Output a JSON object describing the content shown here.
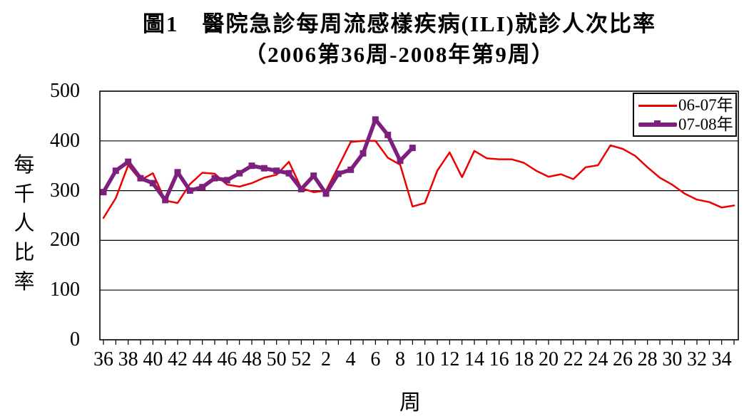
{
  "title": {
    "line1": "圖1　醫院急診每周流感樣疾病(ILI)就診人次比率",
    "line2": "（2006第36周-2008年第9周）"
  },
  "axes": {
    "y_title_vertical": "每千人比率",
    "x_title": "周",
    "y_ticks": [
      "0",
      "100",
      "200",
      "300",
      "400",
      "500"
    ],
    "x_tick_labels": [
      "36",
      "38",
      "40",
      "42",
      "44",
      "46",
      "48",
      "50",
      "52",
      "2",
      "4",
      "6",
      "8",
      "10",
      "12",
      "14",
      "16",
      "18",
      "20",
      "22",
      "24",
      "26",
      "28",
      "30",
      "32",
      "34"
    ]
  },
  "legend": {
    "items": [
      {
        "label": "06-07年",
        "color": "#ee0000",
        "style": "thin"
      },
      {
        "label": "07-08年",
        "color": "#7d1f7d",
        "style": "thick-marker"
      }
    ]
  },
  "chart_data": {
    "type": "line",
    "title": "圖1 醫院急診每周流感樣疾病(ILI)就診人次比率（2006第36周-2008年第9周）",
    "xlabel": "周",
    "ylabel": "每千人比率",
    "ylim": [
      0,
      500
    ],
    "y_gridlines": [
      100,
      200,
      300,
      400
    ],
    "grid": true,
    "legend_position": "top-right",
    "x_weeks": [
      36,
      37,
      38,
      39,
      40,
      41,
      42,
      43,
      44,
      45,
      46,
      47,
      48,
      49,
      50,
      51,
      52,
      1,
      2,
      3,
      4,
      5,
      6,
      7,
      8,
      9,
      10,
      11,
      12,
      13,
      14,
      15,
      16,
      17,
      18,
      19,
      20,
      21,
      22,
      23,
      24,
      25,
      26,
      27,
      28,
      29,
      30,
      31,
      32,
      33,
      34,
      35
    ],
    "series": [
      {
        "name": "06-07年",
        "color": "#ee0000",
        "line_width": 2.5,
        "marker": false,
        "values": [
          245,
          285,
          351,
          321,
          335,
          280,
          275,
          313,
          336,
          334,
          312,
          308,
          315,
          326,
          332,
          358,
          305,
          297,
          300,
          348,
          398,
          400,
          400,
          366,
          352,
          268,
          275,
          340,
          377,
          327,
          380,
          365,
          363,
          363,
          356,
          340,
          328,
          333,
          323,
          347,
          351,
          391,
          384,
          370,
          347,
          326,
          312,
          294,
          282,
          277,
          266,
          270
        ]
      },
      {
        "name": "07-08年",
        "color": "#7d1f7d",
        "line_width": 5.5,
        "marker": true,
        "marker_size": 9,
        "values": [
          297,
          340,
          358,
          325,
          315,
          281,
          337,
          300,
          307,
          325,
          321,
          335,
          350,
          345,
          340,
          335,
          303,
          330,
          294,
          334,
          342,
          375,
          443,
          412,
          360,
          386
        ]
      }
    ]
  }
}
